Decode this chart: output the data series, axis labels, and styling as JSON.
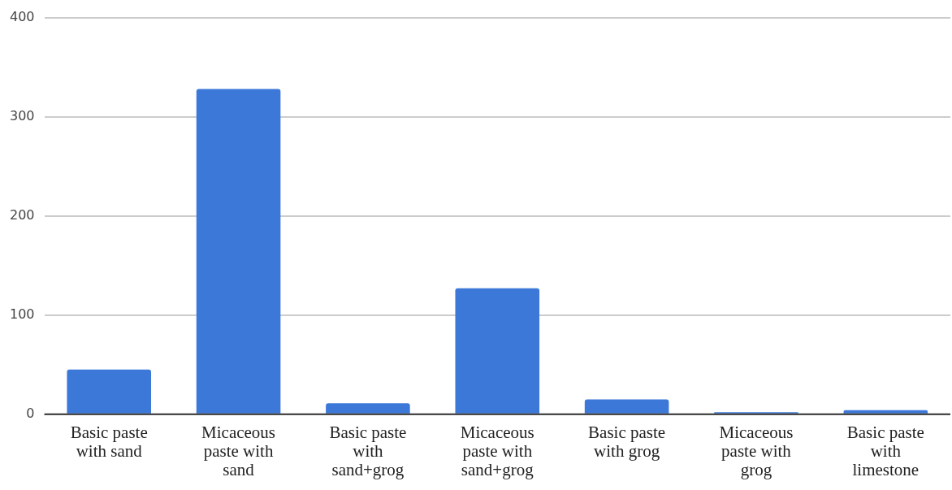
{
  "chart_data": {
    "type": "bar",
    "categories": [
      "Basic paste with sand",
      "Micaceous paste with sand",
      "Basic paste with sand+grog",
      "Micaceous paste with sand+grog",
      "Basic paste with grog",
      "Micaceous paste with grog",
      "Basic paste with limestone"
    ],
    "values": [
      45,
      328,
      11,
      127,
      15,
      2,
      4
    ],
    "color": "#3c78d8",
    "ylim": [
      0,
      400
    ],
    "yticks": [
      0,
      100,
      200,
      300,
      400
    ],
    "grid": "y",
    "legend": false
  }
}
